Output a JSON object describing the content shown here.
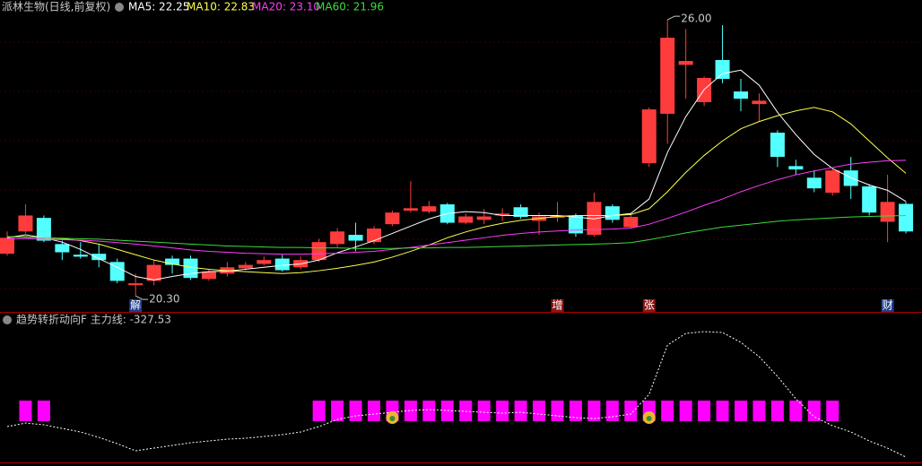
{
  "chart_data": [
    {
      "type": "candlestick",
      "title": "派林生物(日线,前复权)",
      "up_color": "#ff3c3c",
      "down_color": "#54ffff",
      "ylim": [
        19.97,
        26.15
      ],
      "open": [
        21.17,
        21.63,
        21.91,
        21.37,
        21.15,
        21.17,
        21.0,
        20.52,
        20.61,
        21.07,
        21.07,
        20.65,
        20.76,
        20.87,
        20.96,
        21.07,
        20.89,
        21.04,
        21.37,
        21.56,
        21.41,
        21.78,
        22.06,
        22.04,
        22.19,
        21.81,
        21.87,
        21.96,
        22.13,
        21.85,
        21.91,
        21.96,
        21.56,
        22.15,
        21.72,
        23.04,
        24.06,
        25.07,
        24.3,
        25.17,
        24.52,
        24.26,
        23.67,
        22.98,
        22.74,
        22.43,
        22.89,
        22.56,
        21.83,
        22.2
      ],
      "high": [
        21.63,
        22.19,
        21.96,
        21.44,
        21.41,
        21.37,
        21.07,
        20.76,
        21.04,
        21.13,
        21.13,
        20.85,
        21.0,
        21.0,
        21.11,
        21.15,
        21.11,
        21.48,
        21.7,
        21.81,
        21.74,
        22.06,
        22.67,
        22.26,
        22.22,
        22.0,
        22.09,
        22.11,
        22.19,
        22.02,
        22.24,
        22.0,
        22.43,
        22.19,
        22.0,
        24.19,
        26,
        25.81,
        24.83,
        25.89,
        24.78,
        24.48,
        23.72,
        23.11,
        22.89,
        22.93,
        23.17,
        22.61,
        22.8,
        22.24
      ],
      "low": [
        21.13,
        21.59,
        21.41,
        21.04,
        21.07,
        20.89,
        20.56,
        20.3,
        20.52,
        20.76,
        20.63,
        20.61,
        20.7,
        20.83,
        20.93,
        20.8,
        20.85,
        21.0,
        21.31,
        21.22,
        21.37,
        21.74,
        22.02,
        22.0,
        21.78,
        21.78,
        21.78,
        21.85,
        21.89,
        21.56,
        21.83,
        21.52,
        21.52,
        21.81,
        21.69,
        22.96,
        23.44,
        24.37,
        24.22,
        24.69,
        24.11,
        23.91,
        22.96,
        22.8,
        22.44,
        22.37,
        22.3,
        21.96,
        21.41,
        21.59
      ],
      "close": [
        21.5,
        21.96,
        21.44,
        21.2,
        21.11,
        21.04,
        20.61,
        20.56,
        20.94,
        20.94,
        20.67,
        20.8,
        20.89,
        20.94,
        21.04,
        20.83,
        21.04,
        21.41,
        21.63,
        21.44,
        21.69,
        22.02,
        22.11,
        22.15,
        21.81,
        21.94,
        21.94,
        22.0,
        21.93,
        21.94,
        21.96,
        21.59,
        22.24,
        21.87,
        21.93,
        24.15,
        25.63,
        25.15,
        24.8,
        24.78,
        24.37,
        24.33,
        23.17,
        22.91,
        22.52,
        22.89,
        22.57,
        22.02,
        22.24,
        21.63
      ],
      "series": [
        {
          "legend": "MA5: 22.25",
          "color": "#ffffff",
          "values": [
            21.5,
            21.56,
            21.5,
            21.41,
            21.26,
            21.07,
            20.89,
            20.7,
            20.63,
            20.7,
            20.76,
            20.8,
            20.81,
            20.85,
            20.89,
            20.93,
            20.96,
            21.04,
            21.19,
            21.31,
            21.44,
            21.59,
            21.74,
            21.89,
            22.0,
            22.04,
            22.02,
            21.96,
            21.96,
            21.96,
            21.96,
            21.93,
            21.89,
            21.96,
            22.0,
            22.3,
            23.26,
            24.0,
            24.56,
            24.89,
            24.96,
            24.65,
            24.09,
            23.63,
            23.22,
            22.93,
            22.74,
            22.59,
            22.48,
            22.25
          ]
        },
        {
          "legend": "MA10: 22.83",
          "color": "#ffff4a",
          "values": [
            21.52,
            21.52,
            21.5,
            21.48,
            21.44,
            21.37,
            21.26,
            21.15,
            21.04,
            20.96,
            20.89,
            20.85,
            20.82,
            20.8,
            20.78,
            20.76,
            20.78,
            20.82,
            20.87,
            20.93,
            21.0,
            21.1,
            21.22,
            21.35,
            21.5,
            21.62,
            21.72,
            21.8,
            21.86,
            21.9,
            21.94,
            21.96,
            21.96,
            21.96,
            21.98,
            22.1,
            22.45,
            22.85,
            23.2,
            23.5,
            23.75,
            23.9,
            24.02,
            24.12,
            24.19,
            24.1,
            23.85,
            23.5,
            23.15,
            22.83
          ]
        },
        {
          "legend": "MA20: 23.10",
          "color": "#ff3cff",
          "values": [
            21.48,
            21.48,
            21.47,
            21.46,
            21.45,
            21.43,
            21.4,
            21.37,
            21.33,
            21.29,
            21.25,
            21.22,
            21.2,
            21.18,
            21.17,
            21.16,
            21.16,
            21.17,
            21.18,
            21.2,
            21.22,
            21.26,
            21.3,
            21.35,
            21.4,
            21.45,
            21.5,
            21.55,
            21.59,
            21.62,
            21.64,
            21.66,
            21.67,
            21.68,
            21.7,
            21.78,
            21.9,
            22.03,
            22.17,
            22.3,
            22.45,
            22.58,
            22.7,
            22.8,
            22.88,
            22.95,
            23.02,
            23.06,
            23.09,
            23.1
          ]
        },
        {
          "legend": "MA60: 21.96",
          "color": "#3cdc3c",
          "values": [
            21.52,
            21.51,
            21.5,
            21.49,
            21.48,
            21.47,
            21.45,
            21.43,
            21.41,
            21.39,
            21.37,
            21.35,
            21.33,
            21.32,
            21.31,
            21.3,
            21.3,
            21.29,
            21.29,
            21.28,
            21.28,
            21.28,
            21.29,
            21.29,
            21.3,
            21.3,
            21.31,
            21.32,
            21.33,
            21.34,
            21.35,
            21.36,
            21.37,
            21.38,
            21.4,
            21.46,
            21.53,
            21.6,
            21.66,
            21.72,
            21.76,
            21.8,
            21.84,
            21.87,
            21.89,
            21.91,
            21.93,
            21.94,
            21.95,
            21.96
          ]
        }
      ],
      "extreme_labels": [
        {
          "value": 26,
          "label": "26.00"
        },
        {
          "value": 20.3,
          "label": "20.30"
        }
      ],
      "events": [
        {
          "text": "解"
        },
        {
          "text": "增"
        },
        {
          "text": "张"
        },
        {
          "text": "财"
        }
      ]
    },
    {
      "type": "indicator",
      "title": "趋势转折动向F  主力线: -327.53",
      "ylim": [
        -407.5,
        1172.5
      ],
      "line_color": "#ffffff",
      "signal_color": "#ff00ff",
      "values": [
        12,
        52,
        32,
        -8,
        -48,
        -108,
        -178,
        -258,
        -228,
        -198,
        -168,
        -148,
        -128,
        -118,
        -98,
        -78,
        -48,
        12,
        92,
        132,
        152,
        172,
        192,
        202,
        192,
        182,
        172,
        162,
        172,
        152,
        132,
        112,
        102,
        122,
        152,
        372,
        922,
        1052,
        1072,
        1062,
        952,
        792,
        572,
        322,
        122,
        22,
        -48,
        -148,
        -228,
        -327.53
      ],
      "signal": [
        0,
        1,
        1,
        0,
        0,
        0,
        0,
        0,
        0,
        0,
        0,
        0,
        0,
        0,
        0,
        0,
        0,
        1,
        1,
        1,
        1,
        1,
        1,
        1,
        1,
        1,
        1,
        1,
        1,
        1,
        1,
        1,
        1,
        1,
        1,
        1,
        1,
        1,
        1,
        1,
        1,
        1,
        1,
        1,
        1,
        1,
        0,
        0,
        0,
        0
      ]
    }
  ]
}
